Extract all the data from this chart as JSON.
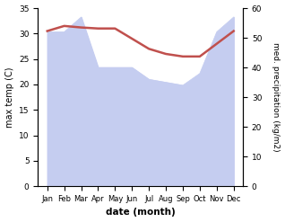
{
  "months": [
    "Jan",
    "Feb",
    "Mar",
    "Apr",
    "May",
    "Jun",
    "Jul",
    "Aug",
    "Sep",
    "Oct",
    "Nov",
    "Dec"
  ],
  "temperature": [
    30.5,
    31.5,
    31.2,
    31.0,
    31.0,
    29.0,
    27.0,
    26.0,
    25.5,
    25.5,
    28.0,
    30.5
  ],
  "precipitation": [
    52,
    52,
    57,
    40,
    40,
    40,
    36,
    35,
    34,
    38,
    52,
    57
  ],
  "temp_color": "#c0504d",
  "precip_fill_color": "#c5cdf0",
  "temp_ylim": [
    0,
    35
  ],
  "precip_ylim": [
    0,
    60
  ],
  "temp_yticks": [
    0,
    5,
    10,
    15,
    20,
    25,
    30,
    35
  ],
  "precip_yticks": [
    0,
    10,
    20,
    30,
    40,
    50,
    60
  ],
  "xlabel": "date (month)",
  "ylabel_left": "max temp (C)",
  "ylabel_right": "med. precipitation (kg/m2)",
  "background_color": "#ffffff"
}
